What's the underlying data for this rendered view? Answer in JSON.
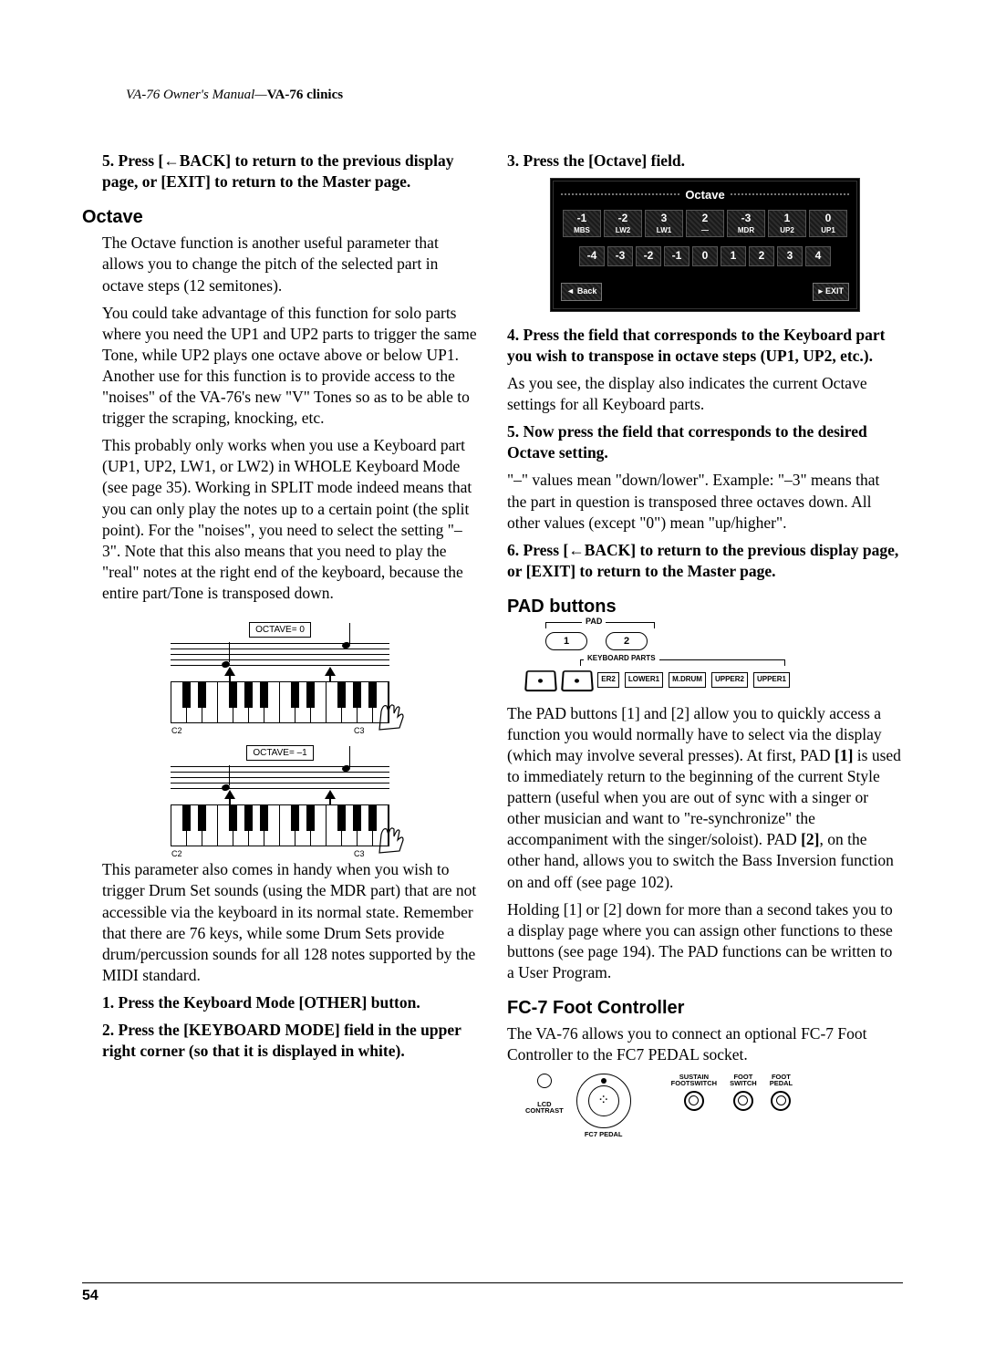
{
  "header": {
    "manual": "VA-76 Owner's Manual—",
    "section": "VA-76 clinics"
  },
  "pageNumber": "54",
  "left": {
    "step5": "5. Press [←BACK] to return to the previous display page, or [EXIT] to return to the Master page.",
    "octave_h": "Octave",
    "octave_p1": "The Octave function is another useful parameter that allows you to change the pitch of the selected part in octave steps (12 semitones).",
    "octave_p2": "You could take advantage of this function for solo parts where you need the UP1 and UP2 parts to trigger the same Tone, while UP2 plays one octave above or below UP1. Another use for this function is to provide access to the \"noises\" of the VA-76's new \"V\" Tones so as to be able to trigger the scraping, knocking, etc.",
    "octave_p3": "This probably only works when you use a Keyboard part (UP1, UP2, LW1, or LW2) in WHOLE Keyboard Mode (see page 35). Working in SPLIT mode indeed means that you can only play the notes up to a certain point (the split point). For the \"noises\", you need to select the setting \"–3\". Note that this also means that you need to play the \"real\" notes at the right end of the keyboard, because the entire part/Tone is transposed down.",
    "diagram": {
      "label0": "OCTAVE= 0",
      "label1": "OCTAVE= –1",
      "c2": "C2",
      "c3": "C3"
    },
    "octave_p4": "This parameter also comes in handy when you wish to trigger Drum Set sounds (using the MDR part) that are not accessible via the keyboard in its normal state. Remember that there are 76 keys, while some Drum Sets provide drum/percussion sounds for all 128 notes supported by the MIDI standard.",
    "step1": "1. Press the Keyboard Mode [OTHER] button.",
    "step2": "2. Press the [KEYBOARD MODE] field in the upper right corner (so that it is displayed in white)."
  },
  "right": {
    "step3": "3. Press the [Octave] field.",
    "lcd": {
      "title": "Octave",
      "parts": [
        {
          "v": "-1",
          "l": "MBS"
        },
        {
          "v": "-2",
          "l": "LW2"
        },
        {
          "v": "3",
          "l": "LW1"
        },
        {
          "v": "2",
          "l": "—"
        },
        {
          "v": "-3",
          "l": "MDR"
        },
        {
          "v": "1",
          "l": "UP2"
        },
        {
          "v": "0",
          "l": "UP1"
        }
      ],
      "nums": [
        "-4",
        "-3",
        "-2",
        "-1",
        "0",
        "1",
        "2",
        "3",
        "4"
      ],
      "back": "Back",
      "exit": "EXIT"
    },
    "step4": "4. Press the field that corresponds to the Keyboard part you wish to transpose in octave steps (UP1, UP2, etc.).",
    "p4a": "As you see, the display also indicates the current Octave settings for all Keyboard parts.",
    "step5": "5. Now press the field that corresponds to the desired Octave setting.",
    "p5a": "\"–\" values mean \"down/lower\". Example: \"–3\" means that the part in question is transposed three octaves down. All other values (except \"0\") mean \"up/higher\".",
    "step6": "6. Press [←BACK] to return to the previous display page, or [EXIT] to return to the Master page.",
    "pad_h": "PAD buttons",
    "pad": {
      "top": "PAD",
      "b1": "1",
      "b2": "2",
      "kparts": "KEYBOARD PARTS",
      "labels": [
        "ER2",
        "LOWER1",
        "M.DRUM",
        "UPPER2",
        "UPPER1"
      ]
    },
    "pad_p1": "The PAD buttons [1] and [2] allow you to quickly access a function you would normally have to select via the display (which may involve several presses). At first, PAD [1] is used to immediately return to the beginning of the current Style pattern (useful when you are out of sync with a singer or other musician and want to \"re-synchronize\" the accompaniment with the singer/soloist). PAD [2], on the other hand, allows you to switch the Bass Inversion function on and off (see page 102).",
    "pad_p2": "Holding [1] or [2] down for more than a second takes you to a display page where you can assign other functions to these buttons (see page 194). The PAD functions can be written to a User Program.",
    "fc7_h": "FC-7 Foot Controller",
    "fc7_p1": "The VA-76 allows you to connect an optional FC-7 Foot Controller to the FC7 PEDAL socket.",
    "fc7": {
      "lcd": "LCD\nCONTRAST",
      "fc7p": "FC7 PEDAL",
      "j1": "SUSTAIN\nFOOTSWITCH",
      "j2": "FOOT\nSWITCH",
      "j3": "FOOT\nPEDAL"
    }
  }
}
